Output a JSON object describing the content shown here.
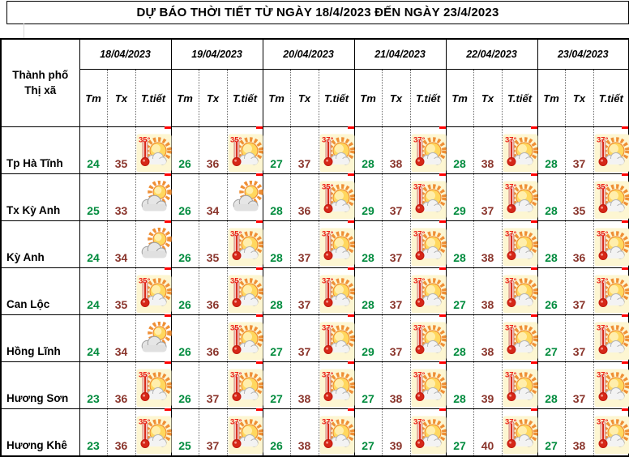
{
  "title": "DỰ BÁO THỜI TIẾT TỪ NGÀY 18/4/2023 ĐẾN NGÀY 23/4/2023",
  "colors": {
    "tm_text": "#008b3d",
    "tx_text": "#8a352c",
    "border": "#000000",
    "comment_marker": "#ff0000",
    "hot_icon_bg": "#fdf6d2",
    "icon_label_red": "#ec1c12",
    "sun_orange": "#ef8f35"
  },
  "icons": {
    "hot-35": {
      "name": "thermometer-sun-cloud-icon",
      "label": "35°"
    },
    "hot-37": {
      "name": "thermometer-sun-cloud-icon",
      "label": "37°"
    },
    "cloud-sun": {
      "name": "sun-behind-cloud-icon",
      "label": ""
    }
  },
  "table": {
    "corner": {
      "line1": "Thành phố",
      "line2": "Thị xã"
    },
    "dates": [
      "18/04/2023",
      "19/04/2023",
      "20/04/2023",
      "21/04/2023",
      "22/04/2023",
      "23/04/2023"
    ],
    "sub_labels": [
      "Tm",
      "Tx",
      "T.tiết"
    ],
    "rows": [
      {
        "city": "Tp Hà Tĩnh",
        "cells": [
          {
            "tm": "24",
            "tx": "35",
            "icon": "hot-35"
          },
          {
            "tm": "26",
            "tx": "36",
            "icon": "hot-35"
          },
          {
            "tm": "27",
            "tx": "37",
            "icon": "hot-37"
          },
          {
            "tm": "28",
            "tx": "38",
            "icon": "hot-37"
          },
          {
            "tm": "28",
            "tx": "38",
            "icon": "hot-37"
          },
          {
            "tm": "28",
            "tx": "37",
            "icon": "hot-37"
          }
        ]
      },
      {
        "city": "Tx Kỳ Anh",
        "cells": [
          {
            "tm": "25",
            "tx": "33",
            "icon": "cloud-sun"
          },
          {
            "tm": "26",
            "tx": "34",
            "icon": "cloud-sun"
          },
          {
            "tm": "28",
            "tx": "36",
            "icon": "hot-35"
          },
          {
            "tm": "29",
            "tx": "37",
            "icon": "hot-37"
          },
          {
            "tm": "29",
            "tx": "37",
            "icon": "hot-37"
          },
          {
            "tm": "28",
            "tx": "35",
            "icon": "hot-35"
          }
        ]
      },
      {
        "city": "Kỳ Anh",
        "cells": [
          {
            "tm": "24",
            "tx": "34",
            "icon": "cloud-sun"
          },
          {
            "tm": "26",
            "tx": "35",
            "icon": "hot-35"
          },
          {
            "tm": "28",
            "tx": "37",
            "icon": "hot-37"
          },
          {
            "tm": "28",
            "tx": "37",
            "icon": "hot-37"
          },
          {
            "tm": "28",
            "tx": "38",
            "icon": "hot-37"
          },
          {
            "tm": "28",
            "tx": "36",
            "icon": "hot-35"
          }
        ]
      },
      {
        "city": "Can Lộc",
        "cells": [
          {
            "tm": "24",
            "tx": "35",
            "icon": "hot-35"
          },
          {
            "tm": "26",
            "tx": "36",
            "icon": "hot-35"
          },
          {
            "tm": "28",
            "tx": "37",
            "icon": "hot-37"
          },
          {
            "tm": "28",
            "tx": "37",
            "icon": "hot-37"
          },
          {
            "tm": "27",
            "tx": "38",
            "icon": "hot-37"
          },
          {
            "tm": "26",
            "tx": "37",
            "icon": "hot-37"
          }
        ]
      },
      {
        "city": "Hồng Lĩnh",
        "cells": [
          {
            "tm": "24",
            "tx": "34",
            "icon": "cloud-sun"
          },
          {
            "tm": "26",
            "tx": "36",
            "icon": "hot-35"
          },
          {
            "tm": "27",
            "tx": "37",
            "icon": "hot-37"
          },
          {
            "tm": "29",
            "tx": "37",
            "icon": "hot-37"
          },
          {
            "tm": "28",
            "tx": "38",
            "icon": "hot-37"
          },
          {
            "tm": "27",
            "tx": "37",
            "icon": "hot-37"
          }
        ]
      },
      {
        "city": "Hương Sơn",
        "cells": [
          {
            "tm": "23",
            "tx": "36",
            "icon": "hot-35"
          },
          {
            "tm": "26",
            "tx": "37",
            "icon": "hot-37"
          },
          {
            "tm": "27",
            "tx": "38",
            "icon": "hot-37"
          },
          {
            "tm": "27",
            "tx": "38",
            "icon": "hot-37"
          },
          {
            "tm": "28",
            "tx": "39",
            "icon": "hot-37"
          },
          {
            "tm": "28",
            "tx": "37",
            "icon": "hot-37"
          }
        ]
      },
      {
        "city": "Hương Khê",
        "cells": [
          {
            "tm": "23",
            "tx": "36",
            "icon": "hot-35"
          },
          {
            "tm": "25",
            "tx": "37",
            "icon": "hot-37"
          },
          {
            "tm": "26",
            "tx": "38",
            "icon": "hot-37"
          },
          {
            "tm": "27",
            "tx": "39",
            "icon": "hot-37"
          },
          {
            "tm": "27",
            "tx": "40",
            "icon": "hot-37"
          },
          {
            "tm": "27",
            "tx": "38",
            "icon": "hot-37"
          }
        ]
      }
    ]
  }
}
